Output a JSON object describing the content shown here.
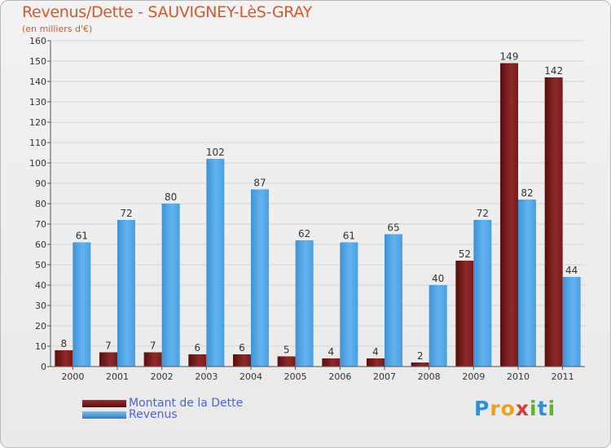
{
  "header": {
    "title": "Revenus/Dette - SAUVIGNEY-LèS-GRAY",
    "subtitle": "(en milliers d'€)"
  },
  "colors": {
    "dette": "#7a1a1a",
    "revenus": "#4da3e6",
    "title": "#d4592d",
    "legend_text": "#4e63d8"
  },
  "chart_data": {
    "type": "bar",
    "title": "Revenus/Dette - SAUVIGNEY-LèS-GRAY",
    "ylabel": "(en milliers d'€)",
    "xlabel": "",
    "ylim": [
      0,
      160
    ],
    "ytick_step": 10,
    "grid": true,
    "legend_position": "bottom-left",
    "categories": [
      "2000",
      "2001",
      "2002",
      "2003",
      "2004",
      "2005",
      "2006",
      "2007",
      "2008",
      "2009",
      "2010",
      "2011"
    ],
    "series": [
      {
        "name": "Montant de la Dette",
        "values": [
          8,
          7,
          7,
          6,
          6,
          5,
          4,
          4,
          2,
          52,
          149,
          142
        ]
      },
      {
        "name": "Revenus",
        "values": [
          61,
          72,
          80,
          102,
          87,
          62,
          61,
          65,
          40,
          72,
          82,
          44
        ]
      }
    ]
  },
  "legend": {
    "items": [
      "Montant de la Dette",
      "Revenus"
    ]
  },
  "logo": {
    "letters": [
      "P",
      "r",
      "o",
      "x",
      "i",
      "t",
      "i"
    ],
    "letter_colors": [
      "#2f8fd8",
      "#e5a51f",
      "#e5a51f",
      "#d43d3d",
      "#5fb32e",
      "#2f8fd8",
      "#5fb32e"
    ]
  }
}
